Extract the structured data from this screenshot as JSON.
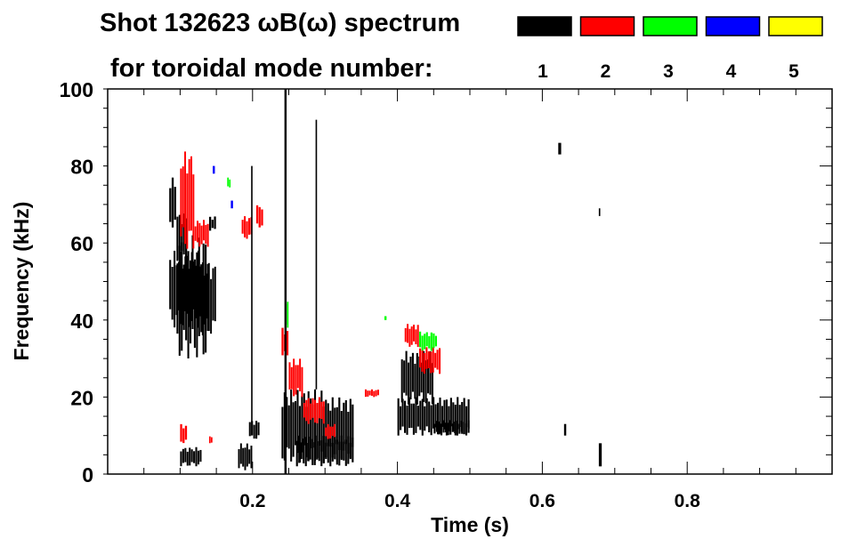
{
  "chart_data": {
    "type": "heatmap",
    "title_line1": "Shot 132623 ωB(ω) spectrum",
    "title_line2": "for toroidal mode number:",
    "xlabel": "Time (s)",
    "ylabel": "Frequency (kHz)",
    "xlim": [
      0,
      1.0
    ],
    "ylim": [
      0,
      100
    ],
    "xticks": [
      {
        "v": 0.2,
        "label": "0.2"
      },
      {
        "v": 0.4,
        "label": "0.4"
      },
      {
        "v": 0.6,
        "label": "0.6"
      },
      {
        "v": 0.8,
        "label": "0.8"
      }
    ],
    "yticks": [
      {
        "v": 0,
        "label": "0"
      },
      {
        "v": 20,
        "label": "20"
      },
      {
        "v": 40,
        "label": "40"
      },
      {
        "v": 60,
        "label": "60"
      },
      {
        "v": 80,
        "label": "80"
      },
      {
        "v": 100,
        "label": "100"
      }
    ],
    "x_minor_step": 0.05,
    "y_minor_step": 5,
    "legend": [
      {
        "mode": "1",
        "color": "#000000"
      },
      {
        "mode": "2",
        "color": "#ff0000"
      },
      {
        "mode": "3",
        "color": "#00ff00"
      },
      {
        "mode": "4",
        "color": "#0000ff"
      },
      {
        "mode": "5",
        "color": "#ffff00"
      }
    ],
    "features": [
      {
        "mode": 1,
        "t": [
          0.085,
          0.13
        ],
        "f": [
          38,
          58
        ]
      },
      {
        "mode": 1,
        "t": [
          0.095,
          0.14
        ],
        "f": [
          30,
          62
        ]
      },
      {
        "mode": 1,
        "t": [
          0.085,
          0.095
        ],
        "f": [
          64,
          77
        ]
      },
      {
        "mode": 1,
        "t": [
          0.095,
          0.11
        ],
        "f": [
          55,
          68
        ]
      },
      {
        "mode": 1,
        "t": [
          0.13,
          0.15
        ],
        "f": [
          36,
          55
        ]
      },
      {
        "mode": 1,
        "t": [
          0.14,
          0.15
        ],
        "f": [
          63,
          67
        ]
      },
      {
        "mode": 2,
        "t": [
          0.1,
          0.12
        ],
        "f": [
          58,
          84
        ]
      },
      {
        "mode": 2,
        "t": [
          0.12,
          0.14
        ],
        "f": [
          59,
          66
        ]
      },
      {
        "mode": 2,
        "t": [
          0.185,
          0.2
        ],
        "f": [
          61,
          67
        ]
      },
      {
        "mode": 2,
        "t": [
          0.205,
          0.215
        ],
        "f": [
          64,
          70
        ]
      },
      {
        "mode": 2,
        "t": [
          0.1,
          0.11
        ],
        "f": [
          8,
          13
        ]
      },
      {
        "mode": 2,
        "t": [
          0.14,
          0.145
        ],
        "f": [
          8,
          10
        ]
      },
      {
        "mode": 1,
        "t": [
          0.1,
          0.13
        ],
        "f": [
          2,
          7
        ]
      },
      {
        "mode": 1,
        "t": [
          0.18,
          0.2
        ],
        "f": [
          1,
          8
        ]
      },
      {
        "mode": 1,
        "t": [
          0.195,
          0.21
        ],
        "f": [
          9,
          14
        ]
      },
      {
        "mode": 3,
        "t": [
          0.165,
          0.17
        ],
        "f": [
          74,
          77
        ]
      },
      {
        "mode": 4,
        "t": [
          0.17,
          0.173
        ],
        "f": [
          69,
          71
        ]
      },
      {
        "mode": 4,
        "t": [
          0.145,
          0.148
        ],
        "f": [
          78,
          80
        ]
      },
      {
        "mode": 1,
        "t": [
          0.24,
          0.3
        ],
        "f": [
          3,
          22
        ]
      },
      {
        "mode": 1,
        "t": [
          0.26,
          0.34
        ],
        "f": [
          2,
          10
        ]
      },
      {
        "mode": 1,
        "t": [
          0.3,
          0.34
        ],
        "f": [
          4,
          20
        ]
      },
      {
        "mode": 2,
        "t": [
          0.24,
          0.25
        ],
        "f": [
          30,
          38
        ]
      },
      {
        "mode": 2,
        "t": [
          0.25,
          0.27
        ],
        "f": [
          20,
          30
        ]
      },
      {
        "mode": 2,
        "t": [
          0.27,
          0.3
        ],
        "f": [
          13,
          20
        ]
      },
      {
        "mode": 2,
        "t": [
          0.3,
          0.315
        ],
        "f": [
          9,
          13
        ]
      },
      {
        "mode": 3,
        "t": [
          0.245,
          0.25
        ],
        "f": [
          38,
          45
        ]
      },
      {
        "mode": 2,
        "t": [
          0.355,
          0.375
        ],
        "f": [
          20,
          22
        ]
      },
      {
        "mode": 1,
        "t": [
          0.4,
          0.5
        ],
        "f": [
          10,
          20
        ]
      },
      {
        "mode": 1,
        "t": [
          0.405,
          0.45
        ],
        "f": [
          18,
          32
        ]
      },
      {
        "mode": 1,
        "t": [
          0.45,
          0.5
        ],
        "f": [
          10,
          14
        ]
      },
      {
        "mode": 2,
        "t": [
          0.41,
          0.43
        ],
        "f": [
          33,
          39
        ]
      },
      {
        "mode": 2,
        "t": [
          0.43,
          0.46
        ],
        "f": [
          26,
          33
        ]
      },
      {
        "mode": 3,
        "t": [
          0.43,
          0.455
        ],
        "f": [
          32,
          37
        ]
      },
      {
        "mode": 3,
        "t": [
          0.382,
          0.385
        ],
        "f": [
          40,
          41
        ]
      },
      {
        "mode": 1,
        "t": [
          0.622,
          0.626
        ],
        "f": [
          83,
          86
        ]
      },
      {
        "mode": 1,
        "t": [
          0.63,
          0.633
        ],
        "f": [
          10,
          13
        ]
      },
      {
        "mode": 1,
        "t": [
          0.678,
          0.682
        ],
        "f": [
          2,
          8
        ]
      },
      {
        "mode": 1,
        "t": [
          0.678,
          0.68
        ],
        "f": [
          67,
          69
        ]
      },
      {
        "mode": 1,
        "t": [
          0.244,
          0.247
        ],
        "f": [
          0,
          100
        ]
      },
      {
        "mode": 1,
        "t": [
          0.287,
          0.289
        ],
        "f": [
          22,
          92
        ]
      },
      {
        "mode": 1,
        "t": [
          0.198,
          0.2
        ],
        "f": [
          10,
          80
        ]
      }
    ]
  }
}
